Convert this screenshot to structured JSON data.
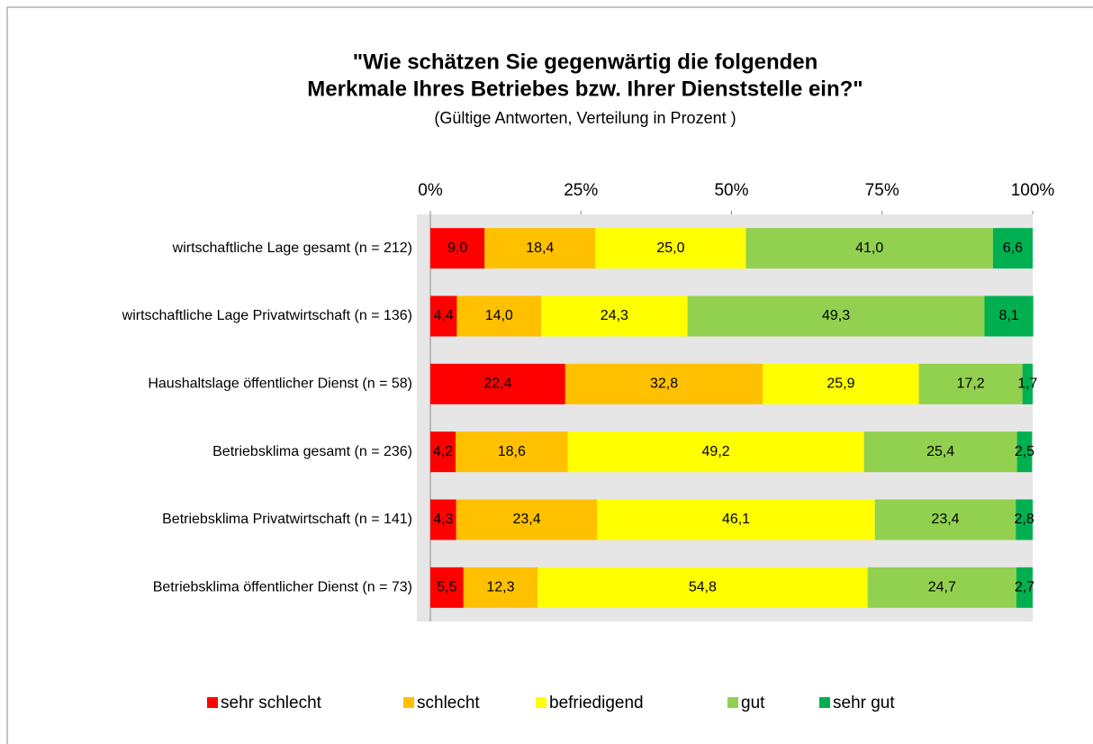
{
  "chart_data": {
    "type": "stacked_barh",
    "title": [
      "\"Wie schätzen Sie gegenwärtig die folgenden",
      "Merkmale Ihres Betriebes bzw. Ihrer Dienststelle ein?\""
    ],
    "subtitle": "(Gültige Antworten, Verteilung in Prozent )",
    "categories": [
      "wirtschaftliche Lage gesamt (n = 212)",
      "wirtschaftliche Lage Privatwirtschaft (n = 136)",
      "Haushaltslage öffentlicher Dienst (n = 58)",
      "Betriebsklima gesamt (n = 236)",
      "Betriebsklima Privatwirtschaft (n = 141)",
      "Betriebsklima öffentlicher Dienst (n = 73)"
    ],
    "xlim": [
      0,
      100
    ],
    "xticks": [
      {
        "value": 0,
        "label": "0%"
      },
      {
        "value": 25,
        "label": "25%"
      },
      {
        "value": 50,
        "label": "50%"
      },
      {
        "value": 75,
        "label": "75%"
      },
      {
        "value": 100,
        "label": "100%"
      }
    ],
    "series": [
      {
        "name": "sehr schlecht",
        "color": "#ff0000",
        "values": [
          9.0,
          4.4,
          22.4,
          4.2,
          4.3,
          5.5
        ],
        "value_labels": [
          "9,0",
          "4,4",
          "22,4",
          "4,2",
          "4,3",
          "5,5"
        ]
      },
      {
        "name": "schlecht",
        "color": "#ffc000",
        "values": [
          18.4,
          14.0,
          32.8,
          18.6,
          23.4,
          12.3
        ],
        "value_labels": [
          "18,4",
          "14,0",
          "32,8",
          "18,6",
          "23,4",
          "12,3"
        ]
      },
      {
        "name": "befriedigend",
        "color": "#ffff00",
        "values": [
          25.0,
          24.3,
          25.9,
          49.2,
          46.1,
          54.8
        ],
        "value_labels": [
          "25,0",
          "24,3",
          "25,9",
          "49,2",
          "46,1",
          "54,8"
        ]
      },
      {
        "name": "gut",
        "color": "#92d050",
        "values": [
          41.0,
          49.3,
          17.2,
          25.4,
          23.4,
          24.7
        ],
        "value_labels": [
          "41,0",
          "49,3",
          "17,2",
          "25,4",
          "23,4",
          "24,7"
        ]
      },
      {
        "name": "sehr gut",
        "color": "#00b050",
        "values": [
          6.6,
          8.1,
          1.7,
          2.5,
          2.8,
          2.7
        ],
        "value_labels": [
          "6,6",
          "8,1",
          "1,7",
          "2,5",
          "2,8",
          "2,7"
        ]
      }
    ]
  }
}
